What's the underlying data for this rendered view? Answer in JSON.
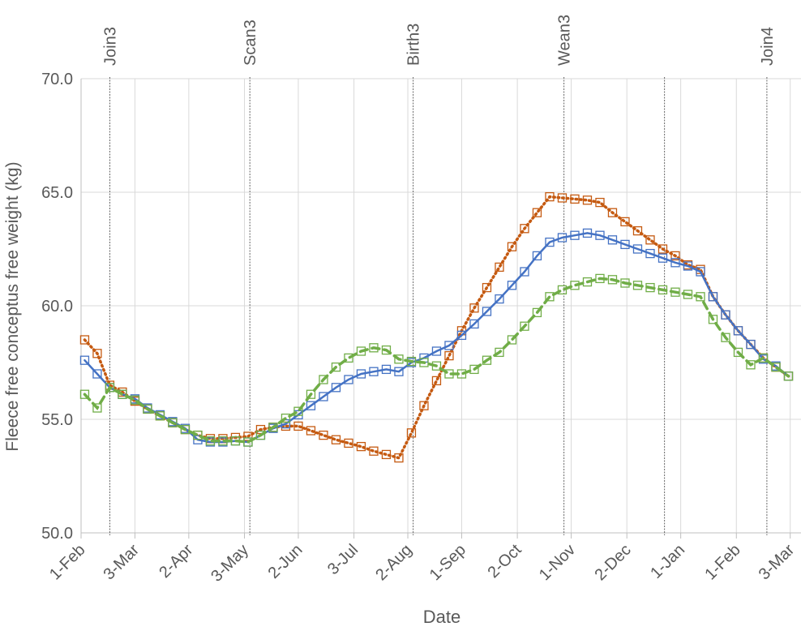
{
  "chart_data": {
    "type": "line",
    "x_label": "Date",
    "y_label": "Fleece free conceptus free weight (kg)",
    "xlim": [
      0,
      401
    ],
    "ylim": [
      50,
      70
    ],
    "xticks": [
      {
        "value": 0,
        "label": "1-Feb"
      },
      {
        "value": 30,
        "label": "3-Mar"
      },
      {
        "value": 60,
        "label": "2-Apr"
      },
      {
        "value": 91,
        "label": "3-May"
      },
      {
        "value": 121,
        "label": "2-Jun"
      },
      {
        "value": 152,
        "label": "3-Jul"
      },
      {
        "value": 182,
        "label": "2-Aug"
      },
      {
        "value": 212,
        "label": "1-Sep"
      },
      {
        "value": 243,
        "label": "2-Oct"
      },
      {
        "value": 273,
        "label": "1-Nov"
      },
      {
        "value": 304,
        "label": "2-Dec"
      },
      {
        "value": 334,
        "label": "1-Jan"
      },
      {
        "value": 365,
        "label": "1-Feb"
      },
      {
        "value": 395,
        "label": "3-Mar"
      }
    ],
    "yticks": [
      {
        "value": 50,
        "label": "50.0"
      },
      {
        "value": 55,
        "label": "55.0"
      },
      {
        "value": 60,
        "label": "60.0"
      },
      {
        "value": 65,
        "label": "65.0"
      },
      {
        "value": 70,
        "label": "70.0"
      }
    ],
    "grid": true,
    "events": [
      {
        "x": 16,
        "label": "Join3"
      },
      {
        "x": 94,
        "label": "Scan3"
      },
      {
        "x": 185,
        "label": "Birth3"
      },
      {
        "x": 269,
        "label": "Wean3"
      },
      {
        "x": 325,
        "label": null
      },
      {
        "x": 382,
        "label": "Join4"
      }
    ],
    "x": [
      2,
      9,
      16,
      23,
      30,
      37,
      44,
      51,
      58,
      65,
      72,
      79,
      86,
      93,
      100,
      107,
      114,
      121,
      128,
      135,
      142,
      149,
      156,
      163,
      170,
      177,
      184,
      191,
      198,
      205,
      212,
      219,
      226,
      233,
      240,
      247,
      254,
      261,
      268,
      275,
      282,
      289,
      296,
      303,
      310,
      317,
      324,
      331,
      338,
      345,
      352,
      359,
      366,
      373,
      380,
      387,
      394
    ],
    "series": [
      {
        "color": "#c55a11",
        "line_style": "dotted",
        "values": [
          58.5,
          57.9,
          56.5,
          56.2,
          55.8,
          55.45,
          55.15,
          54.85,
          54.55,
          54.3,
          54.15,
          54.15,
          54.2,
          54.25,
          54.55,
          54.65,
          54.7,
          54.7,
          54.5,
          54.3,
          54.1,
          53.95,
          53.8,
          53.6,
          53.45,
          53.3,
          54.4,
          55.6,
          56.7,
          57.8,
          58.9,
          59.9,
          60.8,
          61.7,
          62.6,
          63.4,
          64.1,
          64.8,
          64.75,
          64.7,
          64.65,
          64.55,
          64.1,
          63.7,
          63.3,
          62.9,
          62.5,
          62.2,
          61.8,
          61.6,
          60.4,
          59.6,
          58.9,
          58.3,
          57.7,
          57.3,
          56.9
        ]
      },
      {
        "color": "#4472c4",
        "line_style": "solid",
        "values": [
          57.6,
          57.0,
          56.4,
          56.1,
          55.9,
          55.5,
          55.2,
          54.9,
          54.6,
          54.1,
          54.0,
          54.0,
          54.05,
          54.0,
          54.3,
          54.6,
          54.8,
          55.2,
          55.6,
          56.0,
          56.4,
          56.75,
          57.0,
          57.1,
          57.2,
          57.1,
          57.5,
          57.7,
          58.0,
          58.25,
          58.7,
          59.2,
          59.75,
          60.3,
          60.9,
          61.5,
          62.2,
          62.8,
          63.0,
          63.1,
          63.2,
          63.1,
          62.9,
          62.7,
          62.5,
          62.3,
          62.1,
          61.9,
          61.75,
          61.5,
          60.4,
          59.6,
          58.9,
          58.3,
          57.65,
          57.35,
          56.9
        ]
      },
      {
        "color": "#70ad47",
        "line_style": "dashed",
        "values": [
          56.1,
          55.5,
          56.4,
          56.1,
          55.85,
          55.45,
          55.15,
          54.85,
          54.55,
          54.3,
          54.05,
          54.05,
          54.05,
          54.0,
          54.3,
          54.65,
          55.05,
          55.35,
          56.1,
          56.75,
          57.3,
          57.7,
          58.0,
          58.15,
          58.05,
          57.65,
          57.55,
          57.5,
          57.35,
          57.0,
          57.0,
          57.2,
          57.6,
          57.95,
          58.5,
          59.1,
          59.7,
          60.4,
          60.7,
          60.9,
          61.05,
          61.2,
          61.15,
          61.0,
          60.9,
          60.8,
          60.7,
          60.6,
          60.5,
          60.4,
          59.4,
          58.6,
          57.95,
          57.4,
          57.7,
          57.3,
          56.9
        ]
      }
    ]
  }
}
